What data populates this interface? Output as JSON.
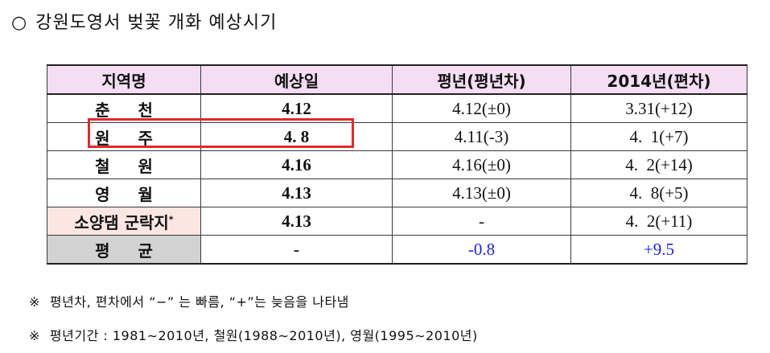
{
  "title": {
    "bullet": "○",
    "text": "강원도영서 벚꽃 개화 예상시기"
  },
  "table": {
    "headers": [
      "지역명",
      "예상일",
      "평년(평년차)",
      "2014년(편차)"
    ],
    "rows": [
      {
        "region": "춘 천",
        "predicted": "4.12",
        "normal": "4.12(±0)",
        "y2014": "3.31(+12)"
      },
      {
        "region": "원 주",
        "predicted": "4. 8",
        "normal": "4.11(-3)",
        "y2014": "4.  1(+7)"
      },
      {
        "region": "철 원",
        "predicted": "4.16",
        "normal": "4.16(±0)",
        "y2014": "4.  2(+14)"
      },
      {
        "region": "영 월",
        "predicted": "4.13",
        "normal": "4.13(±0)",
        "y2014": "4.  8(+5)"
      },
      {
        "region": "소양댐 군락지",
        "region_mark": "*",
        "predicted": "4.13",
        "normal": "-",
        "y2014": "4.  2(+11)"
      }
    ],
    "average": {
      "region": "평 균",
      "predicted": "-",
      "normal": "-0.8",
      "y2014": "+9.5"
    }
  },
  "notes": [
    {
      "mark": "※",
      "text": "평년차, 편차에서 “−” 는 빠름, “+”는 늦음을 나타냄"
    },
    {
      "mark": "※",
      "text": "평년기간 : 1981∼2010년, 철원(1988∼2010년), 영월(1995∼2010년)"
    }
  ],
  "colors": {
    "header_bg": "#f5ddf3",
    "special_region_bg": "#fbe6e2",
    "average_region_bg": "#d2d2d2",
    "average_value_color": "#1f1fd6",
    "highlight_border": "#e02a2a"
  }
}
